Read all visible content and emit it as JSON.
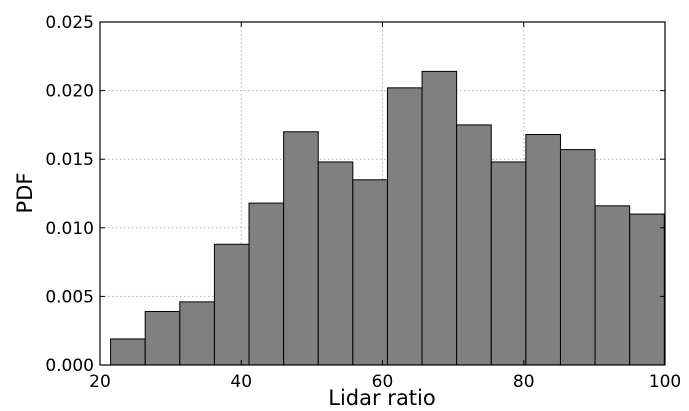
{
  "chart_data": {
    "type": "bar",
    "histogram": true,
    "bin_edges": [
      21.5,
      26.4,
      31.3,
      36.2,
      41.1,
      46.0,
      50.9,
      55.8,
      60.7,
      65.6,
      70.5,
      75.4,
      80.3,
      85.2,
      90.1,
      95.0,
      99.9
    ],
    "values": [
      0.0019,
      0.0039,
      0.0046,
      0.0088,
      0.0118,
      0.017,
      0.0148,
      0.0135,
      0.0202,
      0.0214,
      0.0175,
      0.0148,
      0.0168,
      0.0157,
      0.0116,
      0.011
    ],
    "xlabel": "Lidar ratio",
    "ylabel": "PDF",
    "xlim": [
      20,
      100
    ],
    "ylim": [
      0,
      0.025
    ],
    "xticks": [
      "20",
      "40",
      "60",
      "80",
      "100"
    ],
    "yticks": [
      "0.000",
      "0.005",
      "0.010",
      "0.015",
      "0.020",
      "0.025"
    ],
    "grid": true,
    "bar_color": "#808080",
    "edge_color": "#000000"
  }
}
